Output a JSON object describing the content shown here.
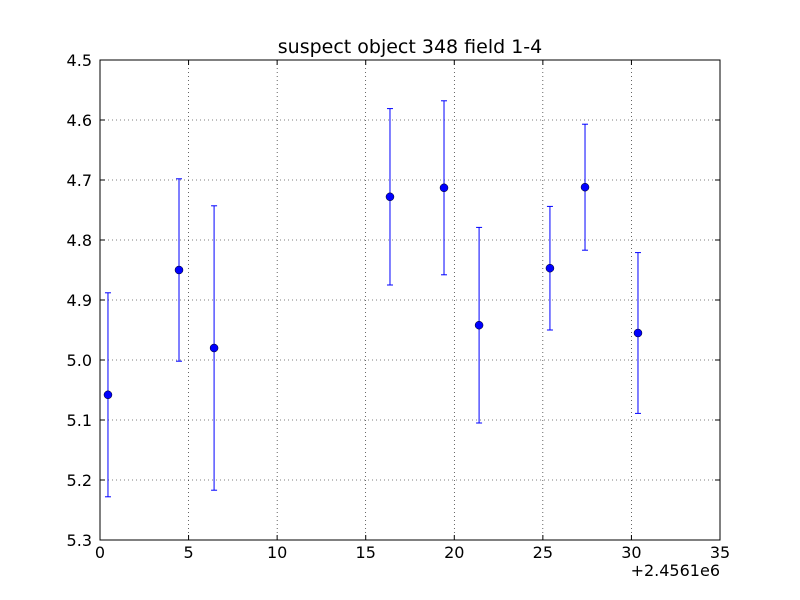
{
  "chart_data": {
    "type": "errorbar",
    "title": "suspect object 348 field 1-4",
    "x_offset_label": "+2.4561e6",
    "x": [
      0.45,
      4.46,
      6.44,
      16.37,
      19.42,
      21.4,
      25.4,
      27.38,
      30.37
    ],
    "values": [
      5.058,
      4.85,
      4.98,
      4.728,
      4.713,
      4.942,
      4.847,
      4.712,
      4.955
    ],
    "errors": [
      0.17,
      0.152,
      0.237,
      0.147,
      0.145,
      0.163,
      0.103,
      0.105,
      0.134
    ],
    "color": "#0000ff",
    "xlim": [
      0,
      35
    ],
    "xticks": [
      0,
      5,
      10,
      15,
      20,
      25,
      30,
      35
    ],
    "ylim": [
      5.3,
      4.5
    ],
    "yticks": [
      4.5,
      4.6,
      4.7,
      4.8,
      4.9,
      {
        "value": 5,
        "label": "5.0"
      },
      5.1,
      5.2,
      5.3
    ],
    "grid": true
  }
}
